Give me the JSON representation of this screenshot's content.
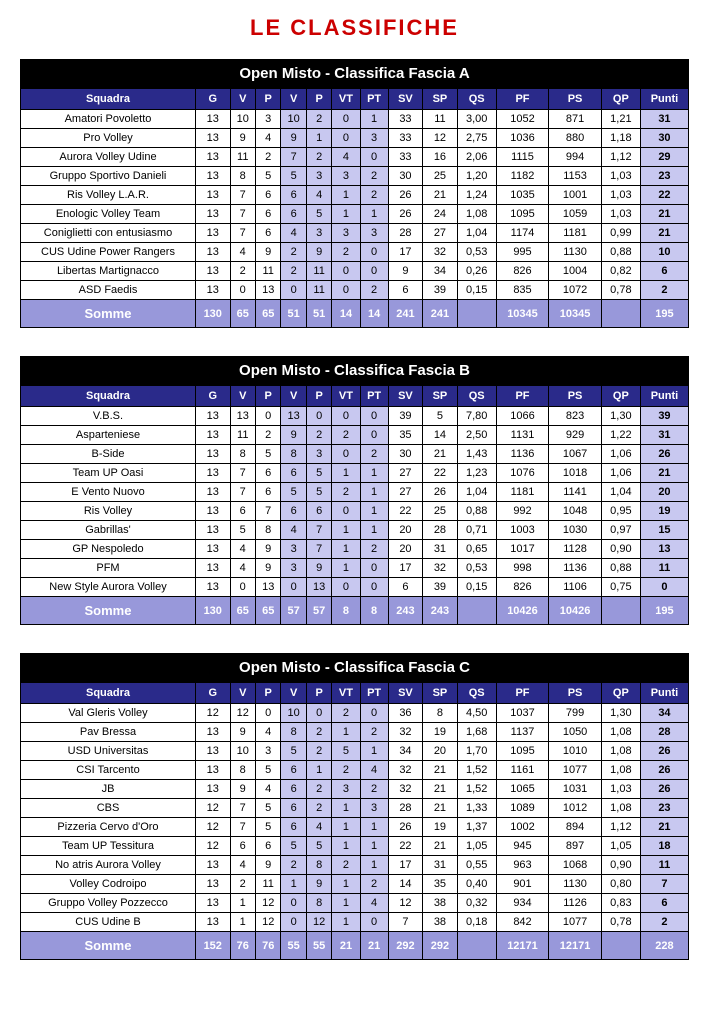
{
  "page_title": "LE CLASSIFICHE",
  "columns": [
    "Squadra",
    "G",
    "V",
    "P",
    "V",
    "P",
    "VT",
    "PT",
    "SV",
    "SP",
    "QS",
    "PF",
    "PS",
    "QP",
    "Punti"
  ],
  "sums_label": "Somme",
  "tables": [
    {
      "title": "Open Misto - Classifica Fascia A",
      "rows": [
        {
          "team": "Amatori Povoletto",
          "G": "13",
          "Vw": "10",
          "Pl": "3",
          "Vs": "10",
          "Ps": "2",
          "VT": "0",
          "PT": "1",
          "SV": "33",
          "SP": "11",
          "QS": "3,00",
          "PF": "1052",
          "PSp": "871",
          "QP": "1,21",
          "Punti": "31"
        },
        {
          "team": "Pro Volley",
          "G": "13",
          "Vw": "9",
          "Pl": "4",
          "Vs": "9",
          "Ps": "1",
          "VT": "0",
          "PT": "3",
          "SV": "33",
          "SP": "12",
          "QS": "2,75",
          "PF": "1036",
          "PSp": "880",
          "QP": "1,18",
          "Punti": "30"
        },
        {
          "team": "Aurora Volley Udine",
          "G": "13",
          "Vw": "11",
          "Pl": "2",
          "Vs": "7",
          "Ps": "2",
          "VT": "4",
          "PT": "0",
          "SV": "33",
          "SP": "16",
          "QS": "2,06",
          "PF": "1115",
          "PSp": "994",
          "QP": "1,12",
          "Punti": "29"
        },
        {
          "team": "Gruppo Sportivo Danieli",
          "G": "13",
          "Vw": "8",
          "Pl": "5",
          "Vs": "5",
          "Ps": "3",
          "VT": "3",
          "PT": "2",
          "SV": "30",
          "SP": "25",
          "QS": "1,20",
          "PF": "1182",
          "PSp": "1153",
          "QP": "1,03",
          "Punti": "23"
        },
        {
          "team": "Ris Volley L.A.R.",
          "G": "13",
          "Vw": "7",
          "Pl": "6",
          "Vs": "6",
          "Ps": "4",
          "VT": "1",
          "PT": "2",
          "SV": "26",
          "SP": "21",
          "QS": "1,24",
          "PF": "1035",
          "PSp": "1001",
          "QP": "1,03",
          "Punti": "22"
        },
        {
          "team": "Enologic Volley Team",
          "G": "13",
          "Vw": "7",
          "Pl": "6",
          "Vs": "6",
          "Ps": "5",
          "VT": "1",
          "PT": "1",
          "SV": "26",
          "SP": "24",
          "QS": "1,08",
          "PF": "1095",
          "PSp": "1059",
          "QP": "1,03",
          "Punti": "21"
        },
        {
          "team": "Coniglietti con entusiasmo",
          "G": "13",
          "Vw": "7",
          "Pl": "6",
          "Vs": "4",
          "Ps": "3",
          "VT": "3",
          "PT": "3",
          "SV": "28",
          "SP": "27",
          "QS": "1,04",
          "PF": "1174",
          "PSp": "1181",
          "QP": "0,99",
          "Punti": "21"
        },
        {
          "team": "CUS Udine Power Rangers",
          "G": "13",
          "Vw": "4",
          "Pl": "9",
          "Vs": "2",
          "Ps": "9",
          "VT": "2",
          "PT": "0",
          "SV": "17",
          "SP": "32",
          "QS": "0,53",
          "PF": "995",
          "PSp": "1130",
          "QP": "0,88",
          "Punti": "10"
        },
        {
          "team": "Libertas Martignacco",
          "G": "13",
          "Vw": "2",
          "Pl": "11",
          "Vs": "2",
          "Ps": "11",
          "VT": "0",
          "PT": "0",
          "SV": "9",
          "SP": "34",
          "QS": "0,26",
          "PF": "826",
          "PSp": "1004",
          "QP": "0,82",
          "Punti": "6"
        },
        {
          "team": "ASD Faedis",
          "G": "13",
          "Vw": "0",
          "Pl": "13",
          "Vs": "0",
          "Ps": "11",
          "VT": "0",
          "PT": "2",
          "SV": "6",
          "SP": "39",
          "QS": "0,15",
          "PF": "835",
          "PSp": "1072",
          "QP": "0,78",
          "Punti": "2"
        }
      ],
      "sums": {
        "G": "130",
        "Vw": "65",
        "Pl": "65",
        "Vs": "51",
        "Ps": "51",
        "VT": "14",
        "PT": "14",
        "SV": "241",
        "SP": "241",
        "QS": "",
        "PF": "10345",
        "PSp": "10345",
        "QP": "",
        "Punti": "195"
      }
    },
    {
      "title": "Open Misto - Classifica Fascia B",
      "rows": [
        {
          "team": "V.B.S.",
          "G": "13",
          "Vw": "13",
          "Pl": "0",
          "Vs": "13",
          "Ps": "0",
          "VT": "0",
          "PT": "0",
          "SV": "39",
          "SP": "5",
          "QS": "7,80",
          "PF": "1066",
          "PSp": "823",
          "QP": "1,30",
          "Punti": "39"
        },
        {
          "team": "Asparteniese",
          "G": "13",
          "Vw": "11",
          "Pl": "2",
          "Vs": "9",
          "Ps": "2",
          "VT": "2",
          "PT": "0",
          "SV": "35",
          "SP": "14",
          "QS": "2,50",
          "PF": "1131",
          "PSp": "929",
          "QP": "1,22",
          "Punti": "31"
        },
        {
          "team": "B-Side",
          "G": "13",
          "Vw": "8",
          "Pl": "5",
          "Vs": "8",
          "Ps": "3",
          "VT": "0",
          "PT": "2",
          "SV": "30",
          "SP": "21",
          "QS": "1,43",
          "PF": "1136",
          "PSp": "1067",
          "QP": "1,06",
          "Punti": "26"
        },
        {
          "team": "Team UP Oasi",
          "G": "13",
          "Vw": "7",
          "Pl": "6",
          "Vs": "6",
          "Ps": "5",
          "VT": "1",
          "PT": "1",
          "SV": "27",
          "SP": "22",
          "QS": "1,23",
          "PF": "1076",
          "PSp": "1018",
          "QP": "1,06",
          "Punti": "21"
        },
        {
          "team": "E Vento Nuovo",
          "G": "13",
          "Vw": "7",
          "Pl": "6",
          "Vs": "5",
          "Ps": "5",
          "VT": "2",
          "PT": "1",
          "SV": "27",
          "SP": "26",
          "QS": "1,04",
          "PF": "1181",
          "PSp": "1141",
          "QP": "1,04",
          "Punti": "20"
        },
        {
          "team": "Ris Volley",
          "G": "13",
          "Vw": "6",
          "Pl": "7",
          "Vs": "6",
          "Ps": "6",
          "VT": "0",
          "PT": "1",
          "SV": "22",
          "SP": "25",
          "QS": "0,88",
          "PF": "992",
          "PSp": "1048",
          "QP": "0,95",
          "Punti": "19"
        },
        {
          "team": "Gabrillas'",
          "G": "13",
          "Vw": "5",
          "Pl": "8",
          "Vs": "4",
          "Ps": "7",
          "VT": "1",
          "PT": "1",
          "SV": "20",
          "SP": "28",
          "QS": "0,71",
          "PF": "1003",
          "PSp": "1030",
          "QP": "0,97",
          "Punti": "15"
        },
        {
          "team": "GP Nespoledo",
          "G": "13",
          "Vw": "4",
          "Pl": "9",
          "Vs": "3",
          "Ps": "7",
          "VT": "1",
          "PT": "2",
          "SV": "20",
          "SP": "31",
          "QS": "0,65",
          "PF": "1017",
          "PSp": "1128",
          "QP": "0,90",
          "Punti": "13"
        },
        {
          "team": "PFM",
          "G": "13",
          "Vw": "4",
          "Pl": "9",
          "Vs": "3",
          "Ps": "9",
          "VT": "1",
          "PT": "0",
          "SV": "17",
          "SP": "32",
          "QS": "0,53",
          "PF": "998",
          "PSp": "1136",
          "QP": "0,88",
          "Punti": "11"
        },
        {
          "team": "New Style Aurora Volley",
          "G": "13",
          "Vw": "0",
          "Pl": "13",
          "Vs": "0",
          "Ps": "13",
          "VT": "0",
          "PT": "0",
          "SV": "6",
          "SP": "39",
          "QS": "0,15",
          "PF": "826",
          "PSp": "1106",
          "QP": "0,75",
          "Punti": "0"
        }
      ],
      "sums": {
        "G": "130",
        "Vw": "65",
        "Pl": "65",
        "Vs": "57",
        "Ps": "57",
        "VT": "8",
        "PT": "8",
        "SV": "243",
        "SP": "243",
        "QS": "",
        "PF": "10426",
        "PSp": "10426",
        "QP": "",
        "Punti": "195"
      }
    },
    {
      "title": "Open Misto - Classifica Fascia C",
      "rows": [
        {
          "team": "Val Gleris Volley",
          "G": "12",
          "Vw": "12",
          "Pl": "0",
          "Vs": "10",
          "Ps": "0",
          "VT": "2",
          "PT": "0",
          "SV": "36",
          "SP": "8",
          "QS": "4,50",
          "PF": "1037",
          "PSp": "799",
          "QP": "1,30",
          "Punti": "34"
        },
        {
          "team": "Pav Bressa",
          "G": "13",
          "Vw": "9",
          "Pl": "4",
          "Vs": "8",
          "Ps": "2",
          "VT": "1",
          "PT": "2",
          "SV": "32",
          "SP": "19",
          "QS": "1,68",
          "PF": "1137",
          "PSp": "1050",
          "QP": "1,08",
          "Punti": "28"
        },
        {
          "team": "USD Universitas",
          "G": "13",
          "Vw": "10",
          "Pl": "3",
          "Vs": "5",
          "Ps": "2",
          "VT": "5",
          "PT": "1",
          "SV": "34",
          "SP": "20",
          "QS": "1,70",
          "PF": "1095",
          "PSp": "1010",
          "QP": "1,08",
          "Punti": "26"
        },
        {
          "team": "CSI Tarcento",
          "G": "13",
          "Vw": "8",
          "Pl": "5",
          "Vs": "6",
          "Ps": "1",
          "VT": "2",
          "PT": "4",
          "SV": "32",
          "SP": "21",
          "QS": "1,52",
          "PF": "1161",
          "PSp": "1077",
          "QP": "1,08",
          "Punti": "26"
        },
        {
          "team": "JB",
          "G": "13",
          "Vw": "9",
          "Pl": "4",
          "Vs": "6",
          "Ps": "2",
          "VT": "3",
          "PT": "2",
          "SV": "32",
          "SP": "21",
          "QS": "1,52",
          "PF": "1065",
          "PSp": "1031",
          "QP": "1,03",
          "Punti": "26"
        },
        {
          "team": "CBS",
          "G": "12",
          "Vw": "7",
          "Pl": "5",
          "Vs": "6",
          "Ps": "2",
          "VT": "1",
          "PT": "3",
          "SV": "28",
          "SP": "21",
          "QS": "1,33",
          "PF": "1089",
          "PSp": "1012",
          "QP": "1,08",
          "Punti": "23"
        },
        {
          "team": "Pizzeria Cervo d'Oro",
          "G": "12",
          "Vw": "7",
          "Pl": "5",
          "Vs": "6",
          "Ps": "4",
          "VT": "1",
          "PT": "1",
          "SV": "26",
          "SP": "19",
          "QS": "1,37",
          "PF": "1002",
          "PSp": "894",
          "QP": "1,12",
          "Punti": "21"
        },
        {
          "team": "Team UP Tessitura",
          "G": "12",
          "Vw": "6",
          "Pl": "6",
          "Vs": "5",
          "Ps": "5",
          "VT": "1",
          "PT": "1",
          "SV": "22",
          "SP": "21",
          "QS": "1,05",
          "PF": "945",
          "PSp": "897",
          "QP": "1,05",
          "Punti": "18"
        },
        {
          "team": "No atris Aurora Volley",
          "G": "13",
          "Vw": "4",
          "Pl": "9",
          "Vs": "2",
          "Ps": "8",
          "VT": "2",
          "PT": "1",
          "SV": "17",
          "SP": "31",
          "QS": "0,55",
          "PF": "963",
          "PSp": "1068",
          "QP": "0,90",
          "Punti": "11"
        },
        {
          "team": "Volley Codroipo",
          "G": "13",
          "Vw": "2",
          "Pl": "11",
          "Vs": "1",
          "Ps": "9",
          "VT": "1",
          "PT": "2",
          "SV": "14",
          "SP": "35",
          "QS": "0,40",
          "PF": "901",
          "PSp": "1130",
          "QP": "0,80",
          "Punti": "7"
        },
        {
          "team": "Gruppo Volley Pozzecco",
          "G": "13",
          "Vw": "1",
          "Pl": "12",
          "Vs": "0",
          "Ps": "8",
          "VT": "1",
          "PT": "4",
          "SV": "12",
          "SP": "38",
          "QS": "0,32",
          "PF": "934",
          "PSp": "1126",
          "QP": "0,83",
          "Punti": "6"
        },
        {
          "team": "CUS Udine B",
          "G": "13",
          "Vw": "1",
          "Pl": "12",
          "Vs": "0",
          "Ps": "12",
          "VT": "1",
          "PT": "0",
          "SV": "7",
          "SP": "38",
          "QS": "0,18",
          "PF": "842",
          "PSp": "1077",
          "QP": "0,78",
          "Punti": "2"
        }
      ],
      "sums": {
        "G": "152",
        "Vw": "76",
        "Pl": "76",
        "Vs": "55",
        "Ps": "55",
        "VT": "21",
        "PT": "21",
        "SV": "292",
        "SP": "292",
        "QS": "",
        "PF": "12171",
        "PSp": "12171",
        "QP": "",
        "Punti": "228"
      }
    }
  ]
}
